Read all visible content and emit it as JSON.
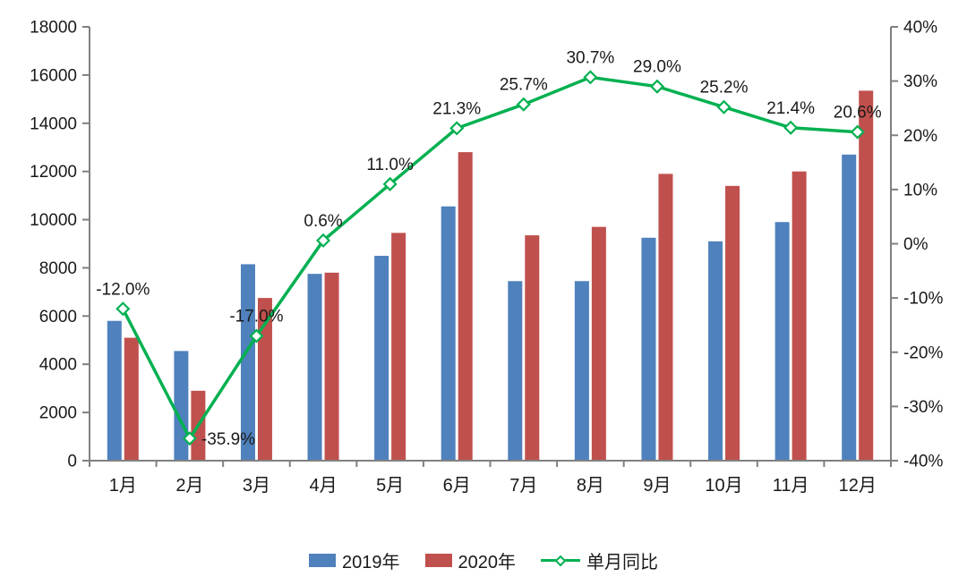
{
  "chart_data": {
    "type": "combo",
    "title": "",
    "categories": [
      "1月",
      "2月",
      "3月",
      "4月",
      "5月",
      "6月",
      "7月",
      "8月",
      "9月",
      "10月",
      "11月",
      "12月"
    ],
    "bar_series": [
      {
        "name": "2019年",
        "color": "#4F81BD",
        "values": [
          5800,
          4550,
          8150,
          7750,
          8500,
          10550,
          7450,
          7450,
          9250,
          9100,
          9900,
          12700
        ]
      },
      {
        "name": "2020年",
        "color": "#C0504D",
        "values": [
          5100,
          2900,
          6750,
          7800,
          9450,
          12800,
          9350,
          9700,
          11900,
          11400,
          12000,
          15350
        ]
      }
    ],
    "line_series": {
      "name": "单月同比",
      "color": "#00B050",
      "values": [
        -12.0,
        -35.9,
        -17.0,
        0.6,
        11.0,
        21.3,
        25.7,
        30.7,
        29.0,
        25.2,
        21.4,
        20.6
      ],
      "labels": [
        "-12.0%",
        "-35.9%",
        "-17.0%",
        "0.6%",
        "11.0%",
        "21.3%",
        "25.7%",
        "30.7%",
        "29.0%",
        "25.2%",
        "21.4%",
        "20.6%"
      ]
    },
    "left_axis": {
      "min": 0,
      "max": 18000,
      "step": 2000,
      "ticks": [
        "0",
        "2000",
        "4000",
        "6000",
        "8000",
        "10000",
        "12000",
        "14000",
        "16000",
        "18000"
      ]
    },
    "right_axis": {
      "min": -40,
      "max": 40,
      "step": 10,
      "ticks": [
        "-40%",
        "-30%",
        "-20%",
        "-10%",
        "0%",
        "10%",
        "20%",
        "30%",
        "40%"
      ]
    },
    "grid": false,
    "legend_position": "bottom",
    "legend": [
      {
        "type": "bar",
        "label": "2019年",
        "color": "#4F81BD"
      },
      {
        "type": "bar",
        "label": "2020年",
        "color": "#C0504D"
      },
      {
        "type": "line",
        "label": "单月同比",
        "color": "#00B050"
      }
    ],
    "axis_line_color": "#808080",
    "text_color": "#1a1a1a"
  }
}
